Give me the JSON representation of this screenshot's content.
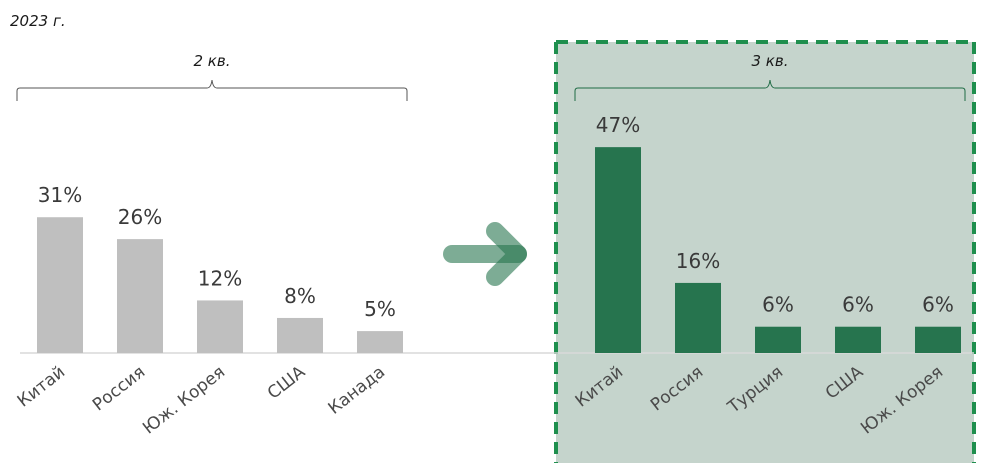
{
  "year_label": "2023 г.",
  "colors": {
    "q2_bar": "#bfbfbf",
    "q3_bar": "#26744e",
    "q3_panel": "#c5d4cc",
    "q3_border": "#1f8f4e",
    "arrow": "#26744e",
    "axis": "#d9d9d9"
  },
  "chart_data": [
    {
      "type": "bar",
      "title": "2 кв.",
      "categories": [
        "Китай",
        "Россия",
        "Юж. Корея",
        "США",
        "Канада"
      ],
      "values": [
        31,
        26,
        12,
        8,
        5
      ],
      "value_labels": [
        "31%",
        "26%",
        "12%",
        "8%",
        "5%"
      ],
      "unit": "%",
      "ylim": [
        0,
        50
      ],
      "grid": false
    },
    {
      "type": "bar",
      "title": "3 кв.",
      "categories": [
        "Китай",
        "Россия",
        "Турция",
        "США",
        "Юж. Корея"
      ],
      "values": [
        47,
        16,
        6,
        6,
        6
      ],
      "value_labels": [
        "47%",
        "16%",
        "6%",
        "6%",
        "6%"
      ],
      "unit": "%",
      "ylim": [
        0,
        50
      ],
      "grid": false
    }
  ]
}
